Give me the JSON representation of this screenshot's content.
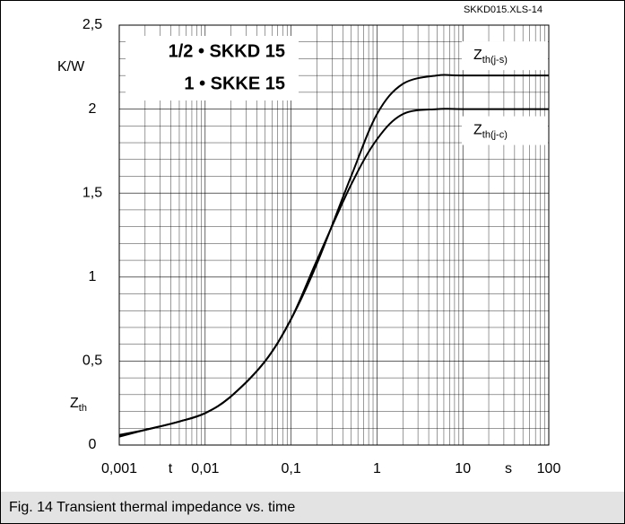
{
  "chart_data": {
    "type": "line",
    "file_label": "SKKD015.XLS-14",
    "title_lines": [
      "1/2 • SKKD 15",
      "1 • SKKE 15"
    ],
    "ylabel_unit": "K/W",
    "ylabel_symbol": "Z",
    "ylabel_sub": "th",
    "xlabel_symbol": "t",
    "xlabel_unit": "s",
    "caption": "Fig. 14 Transient thermal impedance vs. time",
    "log_x": true,
    "grid": true,
    "x": [
      0.001,
      0.002,
      0.005,
      0.01,
      0.02,
      0.05,
      0.1,
      0.2,
      0.5,
      1,
      2,
      5,
      10,
      100
    ],
    "series": [
      {
        "name": "Z",
        "name_sub": "th(j-s)",
        "color": "#000000",
        "values": [
          0.05,
          0.09,
          0.14,
          0.19,
          0.29,
          0.5,
          0.75,
          1.08,
          1.6,
          1.97,
          2.15,
          2.2,
          2.2,
          2.2
        ]
      },
      {
        "name": "Z",
        "name_sub": "th(j-c)",
        "color": "#000000",
        "values": [
          0.06,
          0.09,
          0.14,
          0.19,
          0.29,
          0.5,
          0.75,
          1.1,
          1.55,
          1.82,
          1.97,
          2.0,
          2.0,
          2.0
        ]
      }
    ],
    "xlim": [
      0.001,
      100
    ],
    "xticks": [
      {
        "value": 0.001,
        "label": "0,001"
      },
      {
        "value": 0.01,
        "label": "0,01"
      },
      {
        "value": 0.1,
        "label": "0,1"
      },
      1,
      10,
      100
    ],
    "ylim": [
      0,
      2.5
    ],
    "yticks": [
      0,
      {
        "value": 0.5,
        "label": "0,5"
      },
      1,
      {
        "value": 1.5,
        "label": "1,5"
      },
      2,
      {
        "value": 2.5,
        "label": "2,5"
      }
    ]
  }
}
